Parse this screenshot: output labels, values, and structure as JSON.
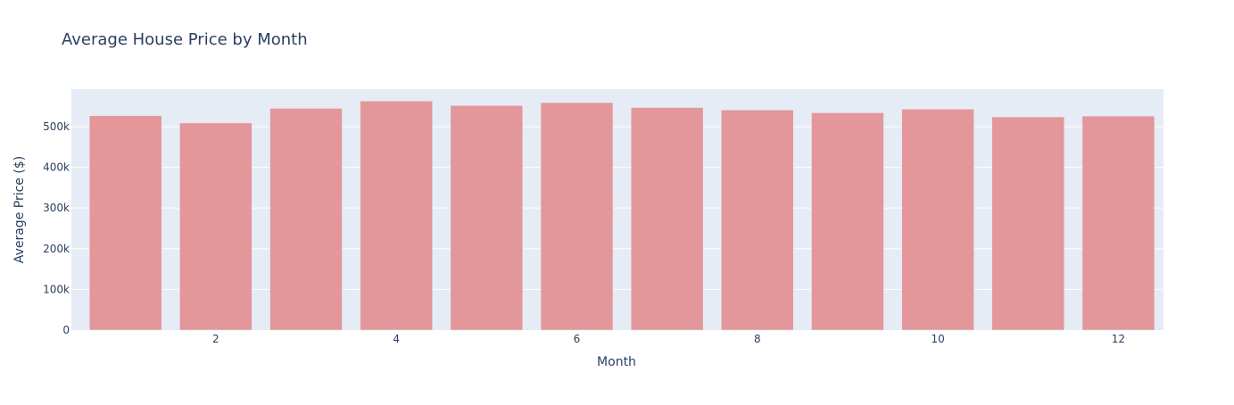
{
  "chart_data": {
    "type": "bar",
    "title": "Average House Price by Month",
    "xlabel": "Month",
    "ylabel": "Average Price ($)",
    "x": [
      1,
      2,
      3,
      4,
      5,
      6,
      7,
      8,
      9,
      10,
      11,
      12
    ],
    "values": [
      527000,
      509000,
      545000,
      563000,
      552000,
      559000,
      547000,
      541000,
      534000,
      543000,
      524000,
      526000
    ],
    "x_ticks": [
      "2",
      "4",
      "6",
      "8",
      "10",
      "12"
    ],
    "x_tick_values": [
      2,
      4,
      6,
      8,
      10,
      12
    ],
    "y_ticks": [
      "0",
      "100k",
      "200k",
      "300k",
      "400k",
      "500k"
    ],
    "y_tick_values": [
      0,
      100000,
      200000,
      300000,
      400000,
      500000
    ],
    "xlim": [
      0.4,
      12.5
    ],
    "ylim": [
      0,
      592000
    ],
    "grid": true,
    "legend": "none",
    "colors": {
      "bar": "#e3979a",
      "plot_bg": "#e5ecf6",
      "grid": "#ffffff",
      "text": "#2a3f5f",
      "tick_text": "#2a3f5f"
    }
  }
}
